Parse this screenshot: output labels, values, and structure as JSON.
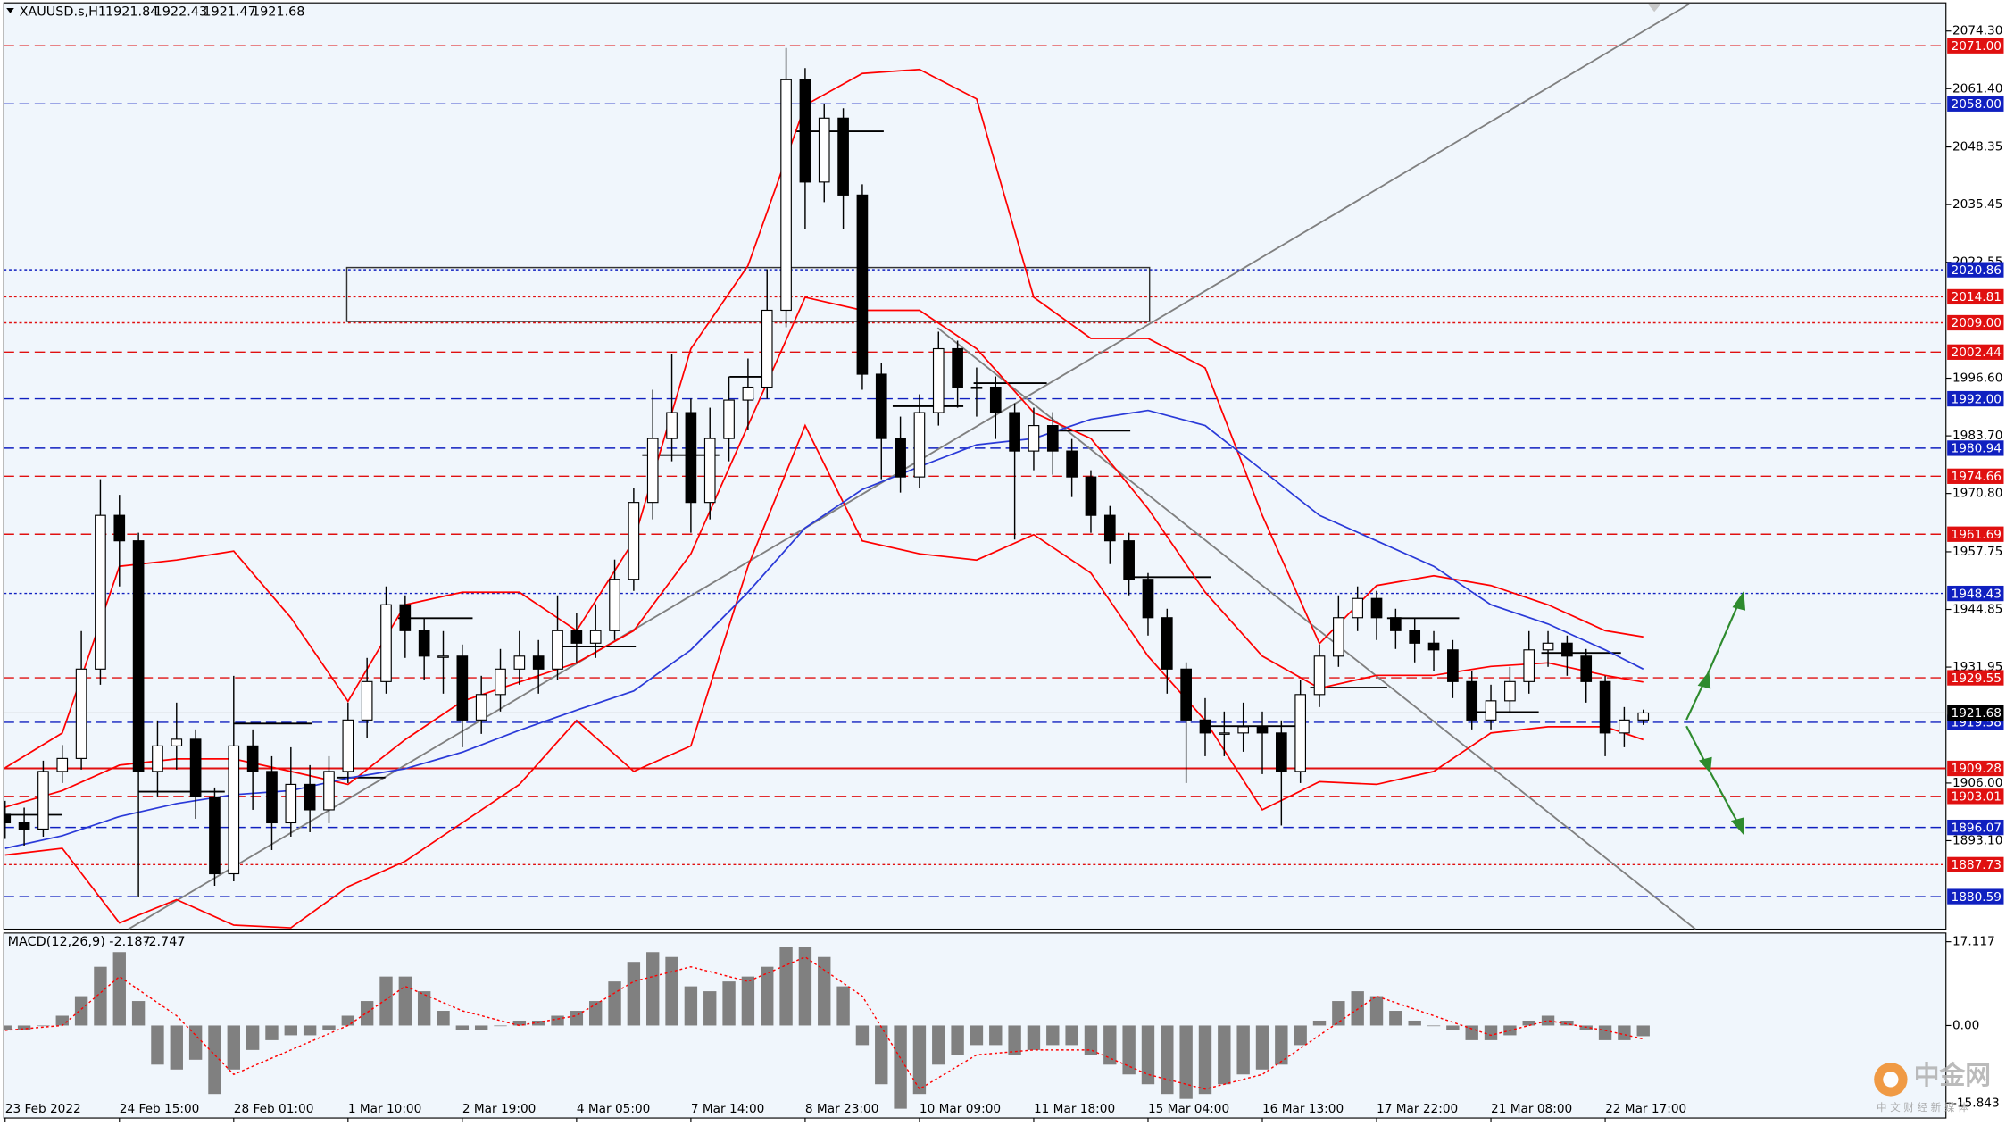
{
  "chart_data": {
    "type": "candlestick",
    "symbol": "XAUUSD.s,H1",
    "header_values": [
      1921.84,
      1922.43,
      1921.47,
      1921.68
    ],
    "categories": [
      "23 Feb 2022",
      null,
      null,
      null,
      null,
      null,
      "24 Feb 15:00",
      null,
      null,
      null,
      null,
      null,
      "28 Feb 01:00",
      null,
      null,
      null,
      null,
      null,
      "1 Mar 10:00",
      null,
      null,
      null,
      null,
      null,
      "2 Mar 19:00",
      null,
      null,
      null,
      null,
      null,
      "4 Mar 05:00",
      null,
      null,
      null,
      null,
      null,
      "7 Mar 14:00",
      null,
      null,
      null,
      null,
      null,
      "8 Mar 23:00",
      null,
      null,
      null,
      null,
      null,
      "10 Mar 09:00",
      null,
      null,
      null,
      null,
      null,
      "11 Mar 18:00",
      null,
      null,
      null,
      null,
      null,
      "15 Mar 04:00",
      null,
      null,
      null,
      null,
      null,
      "16 Mar 13:00",
      null,
      null,
      null,
      null,
      null,
      "17 Mar 22:00",
      null,
      null,
      null,
      null,
      null,
      "21 Mar 08:00",
      null,
      null,
      null,
      null,
      null,
      "22 Mar 17:00",
      null,
      null
    ],
    "open": [
      1899.0,
      1897.1,
      1895.7,
      1908.6,
      1911.5,
      1931.5,
      1965.9,
      1960.2,
      1908.6,
      1914.3,
      1915.8,
      1902.9,
      1885.7,
      1914.3,
      1908.6,
      1897.1,
      1905.7,
      1900.0,
      1908.6,
      1920.1,
      1928.7,
      1945.9,
      1940.1,
      1934.4,
      1934.4,
      1920.1,
      1925.8,
      1931.5,
      1934.4,
      1931.5,
      1940.1,
      1937.3,
      1940.1,
      1951.6,
      1968.8,
      1983.1,
      1988.9,
      1968.8,
      1983.1,
      1991.7,
      1994.6,
      2011.8,
      2063.4,
      2040.5,
      2054.8,
      2037.6,
      1997.5,
      1983.1,
      1974.5,
      1988.9,
      2003.2,
      1994.6,
      1994.6,
      1988.9,
      1980.3,
      1986.0,
      1980.3,
      1974.5,
      1965.9,
      1960.2,
      1951.6,
      1943.0,
      1931.5,
      1920.1,
      1917.2,
      1917.2,
      1918.6,
      1917.2,
      1908.6,
      1925.8,
      1934.4,
      1943.0,
      1947.3,
      1943.0,
      1940.1,
      1937.3,
      1935.8,
      1928.7,
      1920.1,
      1924.4,
      1928.7,
      1935.8,
      1937.3,
      1934.4,
      1928.7,
      1917.2,
      1920.1
    ],
    "high": [
      1902.0,
      1900.5,
      1911.0,
      1914.5,
      1940.0,
      1974.0,
      1970.5,
      1962.0,
      1920.0,
      1924.0,
      1918.0,
      1905.0,
      1930.0,
      1918.0,
      1912.0,
      1914.0,
      1910.0,
      1912.0,
      1924.0,
      1934.0,
      1950.0,
      1948.0,
      1943.0,
      1940.0,
      1937.0,
      1930.0,
      1936.0,
      1940.0,
      1938.0,
      1948.0,
      1944.0,
      1946.0,
      1956.0,
      1972.0,
      1994.0,
      2002.0,
      1992.0,
      1990.0,
      1997.0,
      2001.0,
      2021.0,
      2070.5,
      2066.0,
      2058.0,
      2057.0,
      2040.0,
      2000.0,
      1988.0,
      1993.0,
      2007.0,
      2005.0,
      1999.0,
      1997.0,
      1991.0,
      1990.0,
      1989.0,
      1983.0,
      1976.0,
      1968.0,
      1962.0,
      1953.0,
      1945.0,
      1933.0,
      1925.0,
      1922.0,
      1924.0,
      1922.0,
      1920.0,
      1929.0,
      1937.0,
      1948.0,
      1950.0,
      1949.0,
      1945.0,
      1943.0,
      1940.0,
      1938.0,
      1931.0,
      1928.0,
      1932.0,
      1940.0,
      1940.0,
      1939.0,
      1936.0,
      1930.0,
      1923.0,
      1922.43
    ],
    "low": [
      1893.5,
      1892.0,
      1894.0,
      1906.0,
      1909.0,
      1928.0,
      1950.0,
      1880.6,
      1903.0,
      1909.0,
      1898.0,
      1883.0,
      1884.0,
      1900.0,
      1891.0,
      1894.0,
      1895.0,
      1897.0,
      1906.0,
      1916.0,
      1926.0,
      1934.0,
      1929.0,
      1926.0,
      1914.0,
      1917.0,
      1922.0,
      1928.0,
      1926.0,
      1929.0,
      1933.0,
      1934.0,
      1938.0,
      1949.0,
      1965.0,
      1978.0,
      1962.0,
      1965.0,
      1978.0,
      1985.0,
      1992.0,
      2008.0,
      2030.0,
      2036.0,
      2030.0,
      1994.0,
      1974.0,
      1971.0,
      1972.0,
      1986.0,
      1990.0,
      1988.0,
      1983.0,
      1960.5,
      1976.0,
      1975.0,
      1970.0,
      1962.0,
      1955.0,
      1948.0,
      1939.0,
      1926.0,
      1906.0,
      1912.0,
      1912.0,
      1913.0,
      1908.0,
      1896.5,
      1906.0,
      1923.0,
      1932.0,
      1940.0,
      1938.0,
      1936.0,
      1933.0,
      1931.0,
      1925.0,
      1918.0,
      1918.0,
      1922.0,
      1926.0,
      1932.0,
      1930.0,
      1924.0,
      1912.0,
      1914.0,
      1919.0
    ],
    "close": [
      1897.1,
      1895.7,
      1908.6,
      1911.5,
      1931.5,
      1965.9,
      1960.2,
      1908.6,
      1914.3,
      1915.8,
      1902.9,
      1885.7,
      1914.3,
      1908.6,
      1897.1,
      1905.7,
      1900.0,
      1908.6,
      1920.1,
      1928.7,
      1945.9,
      1940.1,
      1934.4,
      1934.4,
      1920.1,
      1925.8,
      1931.5,
      1934.4,
      1931.5,
      1940.1,
      1937.3,
      1940.1,
      1951.6,
      1968.8,
      1983.1,
      1988.9,
      1968.8,
      1983.1,
      1991.7,
      1994.6,
      2011.8,
      2063.4,
      2040.5,
      2054.8,
      2037.6,
      1997.5,
      1983.1,
      1974.5,
      1988.9,
      2003.2,
      1994.6,
      1994.6,
      1988.9,
      1980.3,
      1986.0,
      1980.3,
      1974.5,
      1965.9,
      1960.2,
      1951.6,
      1943.0,
      1931.5,
      1920.1,
      1917.2,
      1917.2,
      1918.6,
      1917.2,
      1908.6,
      1925.8,
      1934.4,
      1943.0,
      1947.3,
      1943.0,
      1940.1,
      1937.3,
      1935.8,
      1928.7,
      1920.1,
      1924.4,
      1928.7,
      1935.8,
      1937.3,
      1934.4,
      1928.7,
      1917.2,
      1920.1,
      1921.68
    ],
    "ylim": [
      1873.3,
      2080.6
    ],
    "yticks": [
      {
        "value": 2074.3,
        "label": "2074.30"
      },
      {
        "value": 2061.4,
        "label": "2061.40"
      },
      2048.35,
      2035.45,
      2022.55,
      {
        "value": 1996.6,
        "label": "1996.60"
      },
      {
        "value": 1983.7,
        "label": "1983.70"
      },
      {
        "value": 1970.8,
        "label": "1970.80"
      },
      1957.75,
      1944.85,
      1931.95,
      {
        "value": 1906,
        "label": "1906.00"
      },
      {
        "value": 1893.1,
        "label": "1893.10"
      }
    ],
    "levels": [
      {
        "value": 2071,
        "label": "2071.00",
        "color": "#e01010",
        "style": "dash"
      },
      {
        "value": 2058,
        "label": "2058.00",
        "color": "#1020c0",
        "style": "dash"
      },
      {
        "value": 2020.86,
        "color": "#1020c0",
        "style": "dot"
      },
      {
        "value": 2014.81,
        "color": "#e01010",
        "style": "dot"
      },
      {
        "value": 2009,
        "label": "2009.00",
        "color": "#e01010",
        "style": "dot"
      },
      {
        "value": 2002.44,
        "color": "#e01010",
        "style": "dash"
      },
      {
        "value": 1992,
        "label": "1992.00",
        "color": "#1020c0",
        "style": "dash"
      },
      {
        "value": 1980.94,
        "color": "#1020c0",
        "style": "dash"
      },
      {
        "value": 1974.66,
        "color": "#e01010",
        "style": "dash"
      },
      {
        "value": 1961.69,
        "color": "#e01010",
        "style": "dash"
      },
      {
        "value": 1948.43,
        "color": "#1020c0",
        "style": "dot"
      },
      {
        "value": 1929.55,
        "color": "#e01010",
        "style": "dash"
      },
      {
        "value": 1919.58,
        "color": "#1020c0",
        "style": "dash"
      },
      {
        "value": 1909.28,
        "color": "#e01010",
        "style": "solid"
      },
      {
        "value": 1903.01,
        "color": "#e01010",
        "style": "dash"
      },
      {
        "value": 1896.07,
        "color": "#1020c0",
        "style": "dash"
      },
      {
        "value": 1887.73,
        "color": "#e01010",
        "style": "dot"
      },
      {
        "value": 1880.59,
        "color": "#1020c0",
        "style": "dash"
      }
    ],
    "overlays": {
      "x": [
        0,
        3,
        6,
        9,
        12,
        15,
        18,
        21,
        24,
        27,
        30,
        33,
        36,
        39,
        42,
        45,
        48,
        51,
        54,
        57,
        60,
        63,
        66,
        69,
        72,
        75,
        78,
        81,
        84,
        86
      ],
      "lines": [
        {
          "color": "#ff0000",
          "values": [
            1909.4,
            1917.2,
            1954.5,
            1955.9,
            1957.9,
            1943.0,
            1924.3,
            1945.9,
            1948.7,
            1948.7,
            1940.1,
            1960.2,
            2003.2,
            2021.8,
            2057.7,
            2064.8,
            2065.7,
            2059.1,
            2014.7,
            2005.5,
            2005.5,
            1998.9,
            1965.9,
            1937.2,
            1950.2,
            1952.4,
            1950.2,
            1945.9,
            1940.1,
            1938.7
          ]
        },
        {
          "color": "#ff0000",
          "values": [
            1900.6,
            1904.3,
            1910.0,
            1911.4,
            1911.4,
            1908.6,
            1905.7,
            1915.7,
            1924.3,
            1928.6,
            1932.9,
            1940.1,
            1957.3,
            1986.0,
            2014.7,
            2011.8,
            2011.8,
            2003.2,
            1988.9,
            1983.1,
            1967.4,
            1948.7,
            1934.4,
            1927.2,
            1930.1,
            1930.1,
            1932.1,
            1932.9,
            1930.1,
            1928.6
          ]
        },
        {
          "color": "#ff0000",
          "values": [
            1889.9,
            1891.4,
            1874.7,
            1879.9,
            1874.2,
            1873.6,
            1882.8,
            1888.5,
            1897.1,
            1905.7,
            1920.0,
            1908.6,
            1914.3,
            1954.5,
            1986.0,
            1960.2,
            1957.3,
            1955.9,
            1961.6,
            1953.0,
            1934.4,
            1920.0,
            1900.0,
            1906.3,
            1905.7,
            1908.6,
            1917.2,
            1918.6,
            1918.6,
            1915.7
          ]
        },
        {
          "color": "#2a3ad8",
          "values": [
            1891.4,
            1894.2,
            1898.5,
            1901.4,
            1903.4,
            1904.3,
            1907.1,
            1909.2,
            1912.9,
            1917.8,
            1922.3,
            1926.6,
            1935.8,
            1948.7,
            1963.1,
            1971.7,
            1976.8,
            1981.7,
            1983.1,
            1987.4,
            1989.4,
            1986.0,
            1976.0,
            1965.9,
            1960.2,
            1954.5,
            1945.9,
            1941.6,
            1935.8,
            1931.5
          ]
        }
      ]
    },
    "macd": {
      "type": "bar",
      "title": "MACD(12,26,9)",
      "color": "#808080",
      "values": [
        -1,
        -1,
        0,
        2,
        6,
        12,
        15,
        5,
        -8,
        -9,
        -7,
        -14,
        -9,
        -5,
        -3,
        -2,
        -2,
        -1,
        2,
        5,
        10,
        10,
        7,
        3,
        -1,
        -1,
        0,
        1,
        1,
        2,
        3,
        5,
        9,
        13,
        15,
        14,
        8,
        7,
        9,
        10,
        12,
        16,
        16,
        14,
        8,
        -4,
        -12,
        -17,
        -14,
        -8,
        -6,
        -4,
        -4,
        -6,
        -5,
        -4,
        -4,
        -6,
        -8,
        -10,
        -12,
        -14,
        -15,
        -14,
        -12,
        -10,
        -9,
        -8,
        -4,
        1,
        5,
        7,
        6,
        3,
        1,
        0,
        -1,
        -3,
        -3,
        -2,
        1,
        2,
        1,
        -1,
        -3,
        -3,
        -2.187
      ],
      "signal": {
        "color": "#ff0000",
        "values": [
          -1,
          0,
          10,
          2,
          -10,
          -5,
          0,
          8,
          3,
          0,
          2,
          9,
          12,
          9,
          14,
          6,
          -13,
          -6,
          -5,
          -5,
          -10,
          -13,
          -10,
          -2,
          6,
          2,
          -2,
          1,
          -1,
          -2.747
        ]
      },
      "ylim": [
        -18.9,
        18.9
      ],
      "yticks": [
        17.117,
        {
          "value": 0,
          "label": "0.00"
        },
        -15.843
      ]
    },
    "watermark": {
      "text": "中金网",
      "subtext": "中 文 财 经 新 媒 体"
    }
  }
}
